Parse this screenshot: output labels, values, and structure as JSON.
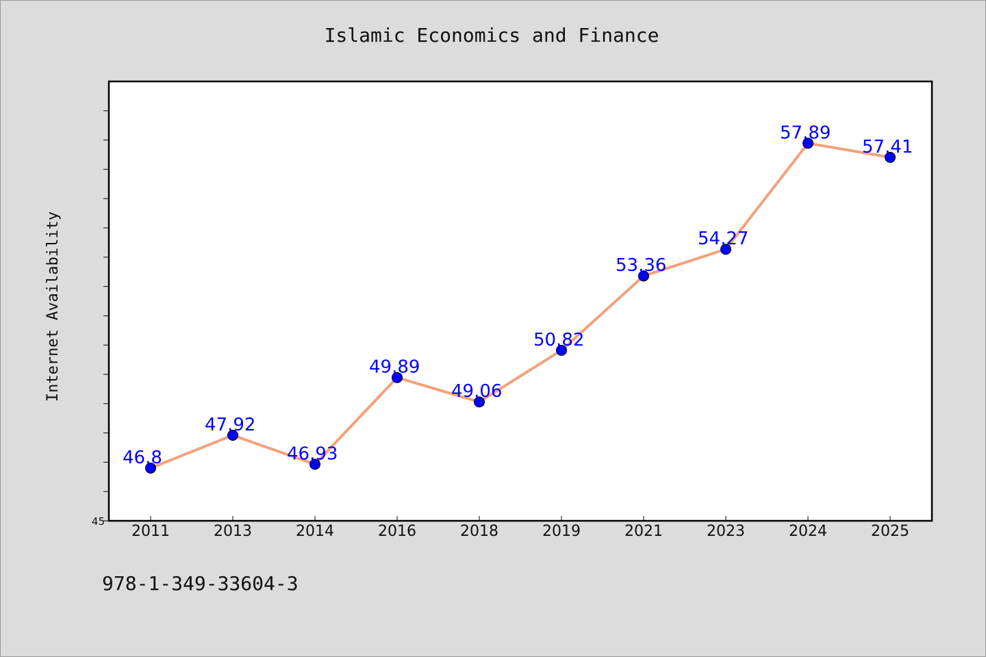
{
  "chart_data": {
    "type": "line",
    "title": "Islamic Economics and Finance",
    "xlabel": "",
    "ylabel": "Internet Availability",
    "categories": [
      "2011",
      "2013",
      "2014",
      "2016",
      "2018",
      "2019",
      "2021",
      "2023",
      "2024",
      "2025"
    ],
    "series": [
      {
        "values": [
          46.8,
          47.92,
          46.93,
          49.89,
          49.06,
          50.82,
          53.36,
          54.27,
          57.89,
          57.41
        ],
        "line_color": "#f4a07a",
        "marker_color": "#0000ff"
      }
    ],
    "data_labels": [
      "46.8",
      "47.92",
      "46.93",
      "49.89",
      "49.06",
      "50.82",
      "53.36",
      "54.27",
      "57.89",
      "57.41"
    ],
    "ylim": [
      45,
      60
    ],
    "yticks_labeled": [
      "45"
    ],
    "grid": false,
    "legend": "none"
  },
  "footer": {
    "text": "978-1-349-33604-3"
  },
  "colors": {
    "background": "#dcdcdc",
    "plot_background": "#ffffff",
    "line": "#f4a07a",
    "marker": "#0000ff",
    "data_label": "#0000ff"
  }
}
